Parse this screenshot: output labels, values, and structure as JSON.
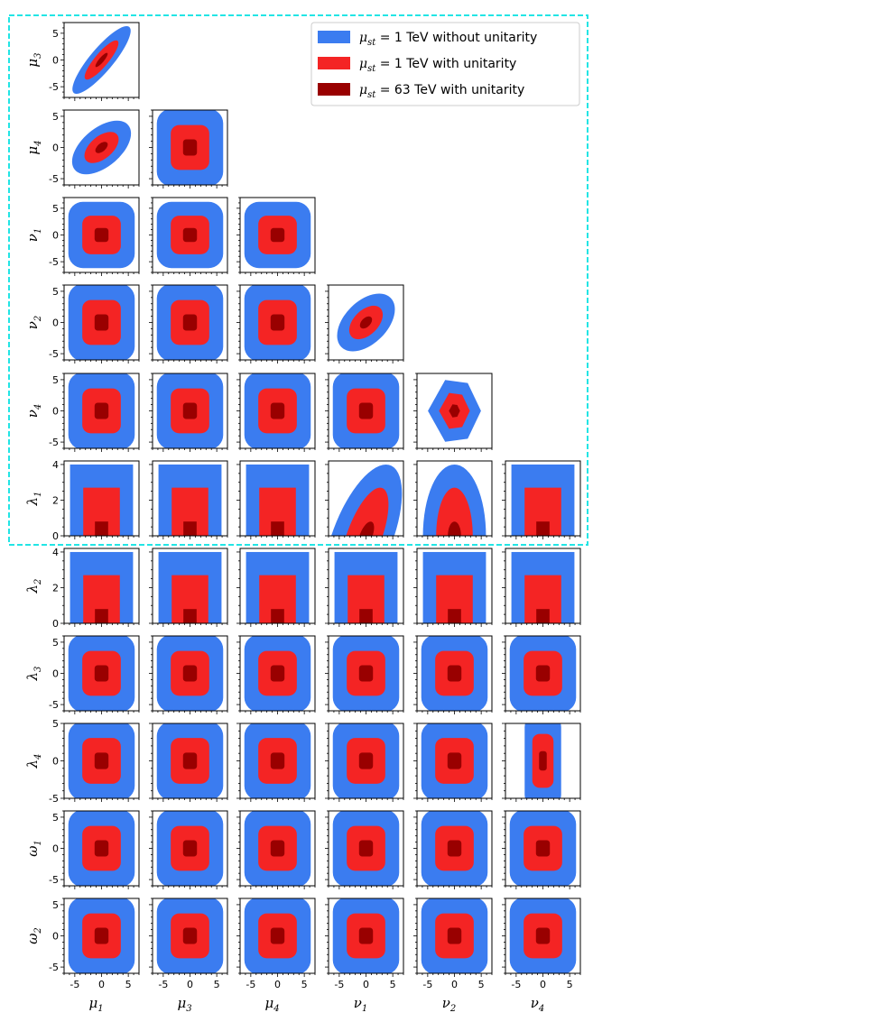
{
  "chart_data": {
    "type": "corner-contour",
    "description_scope": "lower-triangle grid of 2D allowed regions",
    "x_params": [
      {
        "sym": "μ",
        "sub": "1"
      },
      {
        "sym": "μ",
        "sub": "3"
      },
      {
        "sym": "μ",
        "sub": "4"
      },
      {
        "sym": "ν",
        "sub": "1"
      },
      {
        "sym": "ν",
        "sub": "2"
      },
      {
        "sym": "ν",
        "sub": "4"
      }
    ],
    "y_params": [
      {
        "sym": "μ",
        "sub": "3",
        "cols": 1,
        "ylim": [
          -7,
          7
        ],
        "yticks": [
          -5,
          0,
          5
        ]
      },
      {
        "sym": "μ",
        "sub": "4",
        "cols": 2,
        "ylim": [
          -6,
          6
        ],
        "yticks": [
          -5,
          0,
          5
        ]
      },
      {
        "sym": "ν",
        "sub": "1",
        "cols": 3,
        "ylim": [
          -7,
          7
        ],
        "yticks": [
          -5,
          0,
          5
        ]
      },
      {
        "sym": "ν",
        "sub": "2",
        "cols": 4,
        "ylim": [
          -6,
          6
        ],
        "yticks": [
          -5,
          0,
          5
        ]
      },
      {
        "sym": "ν",
        "sub": "4",
        "cols": 5,
        "ylim": [
          -6,
          6
        ],
        "yticks": [
          -5,
          0,
          5
        ]
      },
      {
        "sym": "λ",
        "sub": "1",
        "cols": 6,
        "ylim": [
          0,
          4.2
        ],
        "yticks": [
          0,
          2,
          4
        ]
      },
      {
        "sym": "λ",
        "sub": "2",
        "cols": 6,
        "ylim": [
          0,
          4.2
        ],
        "yticks": [
          0,
          2,
          4
        ]
      },
      {
        "sym": "λ",
        "sub": "3",
        "cols": 6,
        "ylim": [
          -6,
          6
        ],
        "yticks": [
          -5,
          0,
          5
        ]
      },
      {
        "sym": "λ",
        "sub": "4",
        "cols": 6,
        "ylim": [
          -5,
          5
        ],
        "yticks": [
          -5,
          0,
          5
        ]
      },
      {
        "sym": "ω",
        "sub": "1",
        "cols": 6,
        "ylim": [
          -6,
          6
        ],
        "yticks": [
          -5,
          0,
          5
        ]
      },
      {
        "sym": "ω",
        "sub": "2",
        "cols": 6,
        "ylim": [
          -6,
          6
        ],
        "yticks": [
          -5,
          0,
          5
        ]
      }
    ],
    "xlim": [
      -7,
      7
    ],
    "xticks": [
      -5,
      0,
      5
    ],
    "series": [
      {
        "name_math": "μ",
        "name_sub": "st",
        "name_text": " = 1 TeV without unitarity",
        "color": "#3b7cf0",
        "bound": 6.2
      },
      {
        "name_math": "μ",
        "name_sub": "st",
        "name_text": " = 1 TeV with unitarity",
        "color": "#f42424",
        "bound": 3.6
      },
      {
        "name_math": "μ",
        "name_sub": "st",
        "name_text": " = 63 TeV with unitarity",
        "color": "#990000",
        "bound": 1.3
      }
    ],
    "lambda_upper": [
      4.0,
      2.7,
      0.8
    ],
    "legend_position": "top-right",
    "highlight_box_color": "#22e5e5"
  }
}
